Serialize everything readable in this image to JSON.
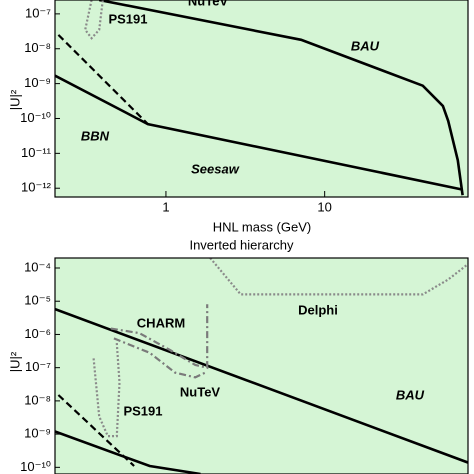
{
  "chart_data": [
    {
      "type": "line",
      "xlabel": "HNL mass (GeV)",
      "ylabel": "|U|²",
      "log_x": true,
      "log_y": true,
      "background": "#d5f5d5",
      "xlim": [
        0.2,
        80
      ],
      "xticks": [
        1,
        10
      ],
      "ylim": [
        5.6e-13,
        2.5e-07
      ],
      "yticks": [
        {
          "value": 1e-07,
          "label": "10⁻⁷"
        },
        {
          "value": 1e-08,
          "label": "10⁻⁸"
        },
        {
          "value": 1e-09,
          "label": "10⁻⁹"
        },
        {
          "value": 1e-10,
          "label": "10⁻¹⁰"
        },
        {
          "value": 1e-11,
          "label": "10⁻¹¹"
        },
        {
          "value": 1e-12,
          "label": "10⁻¹²"
        }
      ],
      "series": [
        {
          "color": "#000000",
          "style": "solid",
          "x": [
            0.38,
            7.1,
            41.5,
            55.6,
            60,
            69,
            74
          ],
          "values": [
            2.5e-07,
            1.8e-08,
            8.7e-10,
            2.3e-10,
            8.5e-11,
            6.3e-12,
            6.3e-13
          ]
        },
        {
          "color": "#000000",
          "style": "solid",
          "x": [
            0.2,
            0.77,
            74
          ],
          "values": [
            1.7e-09,
            6.9e-11,
            9.1e-13
          ]
        },
        {
          "color": "#000000",
          "style": "dashed",
          "x": [
            0.21,
            0.77
          ],
          "values": [
            2.5e-08,
            6.9e-11
          ]
        },
        {
          "color": "#8a8a8a",
          "style": "dotted",
          "x": [
            0.34,
            0.31,
            0.34,
            0.38,
            0.4
          ],
          "values": [
            2.5e-07,
            3.5e-08,
            2e-08,
            3.5e-08,
            2.5e-07
          ]
        }
      ],
      "annotations": [
        "NuTeV",
        "PS191",
        "BAU",
        "BBN",
        "Seesaw"
      ]
    },
    {
      "type": "line",
      "title": "Inverted hierarchy",
      "ylabel": "|U|²",
      "log_x": true,
      "log_y": true,
      "background": "#d5f5d5",
      "xlim": [
        0.2,
        80
      ],
      "ylim": [
        6.3e-11,
        0.0002
      ],
      "yticks": [
        {
          "value": 0.0001,
          "label": "10⁻⁴"
        },
        {
          "value": 1e-05,
          "label": "10⁻⁵"
        },
        {
          "value": 1e-06,
          "label": "10⁻⁶"
        },
        {
          "value": 1e-07,
          "label": "10⁻⁷"
        },
        {
          "value": 1e-08,
          "label": "10⁻⁸"
        },
        {
          "value": 1e-09,
          "label": "10⁻⁹"
        },
        {
          "value": 1e-10,
          "label": "10⁻¹⁰"
        }
      ],
      "series": [
        {
          "color": "#8a8a8a",
          "style": "dotted",
          "x": [
            1.9,
            2.96,
            41.5,
            60,
            83
          ],
          "values": [
            0.0002,
            1.6e-05,
            1.6e-05,
            4.5e-05,
            0.00015
          ]
        },
        {
          "color": "#000000",
          "style": "solid",
          "x": [
            0.2,
            83
          ],
          "values": [
            5.8e-06,
            1.3e-10
          ]
        },
        {
          "color": "#7a7a7a",
          "style": "dashdot",
          "x": [
            0.45,
            0.68,
            1.06,
            1.53,
            1.82,
            1.82
          ],
          "values": [
            1.5e-06,
            1.1e-06,
            3.4e-07,
            1.2e-07,
            1e-07,
            8.1e-06
          ]
        },
        {
          "color": "#7a7a7a",
          "style": "dashdot",
          "x": [
            0.47,
            0.79,
            1.14,
            1.53,
            1.77
          ],
          "values": [
            7.6e-07,
            2.8e-07,
            7.1e-08,
            5.1e-08,
            7.1e-08
          ]
        },
        {
          "color": "#8a8a8a",
          "style": "dotted",
          "x": [
            0.35,
            0.38,
            0.43,
            0.49,
            0.51,
            0.49
          ],
          "values": [
            1.9e-07,
            3.4e-09,
            8.7e-10,
            8.7e-10,
            3.6e-08,
            5.5e-07
          ]
        },
        {
          "color": "#000000",
          "style": "solid",
          "x": [
            0.2,
            0.79,
            1.65
          ],
          "values": [
            1.2e-09,
            1.1e-10,
            6.3e-11
          ]
        },
        {
          "color": "#000000",
          "style": "dashed",
          "x": [
            0.21,
            0.63
          ],
          "values": [
            1.5e-08,
            1.1e-10
          ]
        }
      ],
      "annotations": [
        "CHARM",
        "NuTeV",
        "PS191",
        "Delphi",
        "BAU"
      ]
    }
  ]
}
